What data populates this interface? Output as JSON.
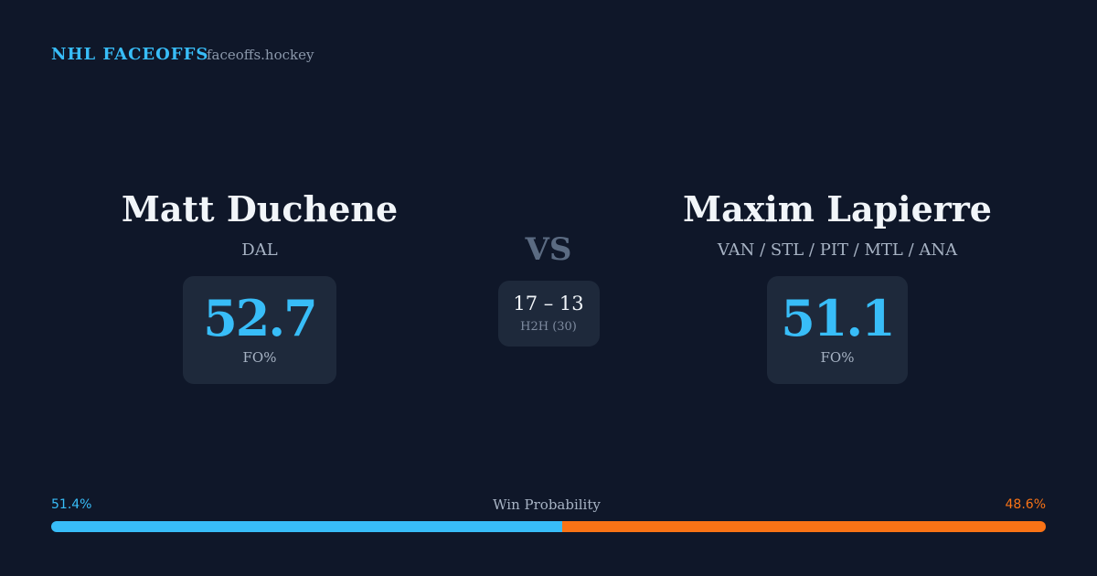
{
  "header": {
    "title": "NHL FACEOFFS",
    "site": "faceoffs.hockey"
  },
  "players": [
    {
      "name": "Matt Duchene",
      "teams": "DAL",
      "fo_pct": 52.7,
      "fo_label": "FO%"
    },
    {
      "name": "Maxim Lapierre",
      "teams": "VAN / STL / PIT / MTL / ANA",
      "fo_pct": 51.1,
      "fo_label": "FO%"
    }
  ],
  "vs": "VS",
  "h2h": {
    "score": "17 – 13",
    "label": "H2H (30)"
  },
  "win_probability": {
    "label": "Win Probability",
    "values": [
      51.4,
      48.6
    ],
    "value_labels": [
      "51.4%",
      "48.6%"
    ],
    "colors": [
      "#38bdf8",
      "#f97316"
    ]
  }
}
